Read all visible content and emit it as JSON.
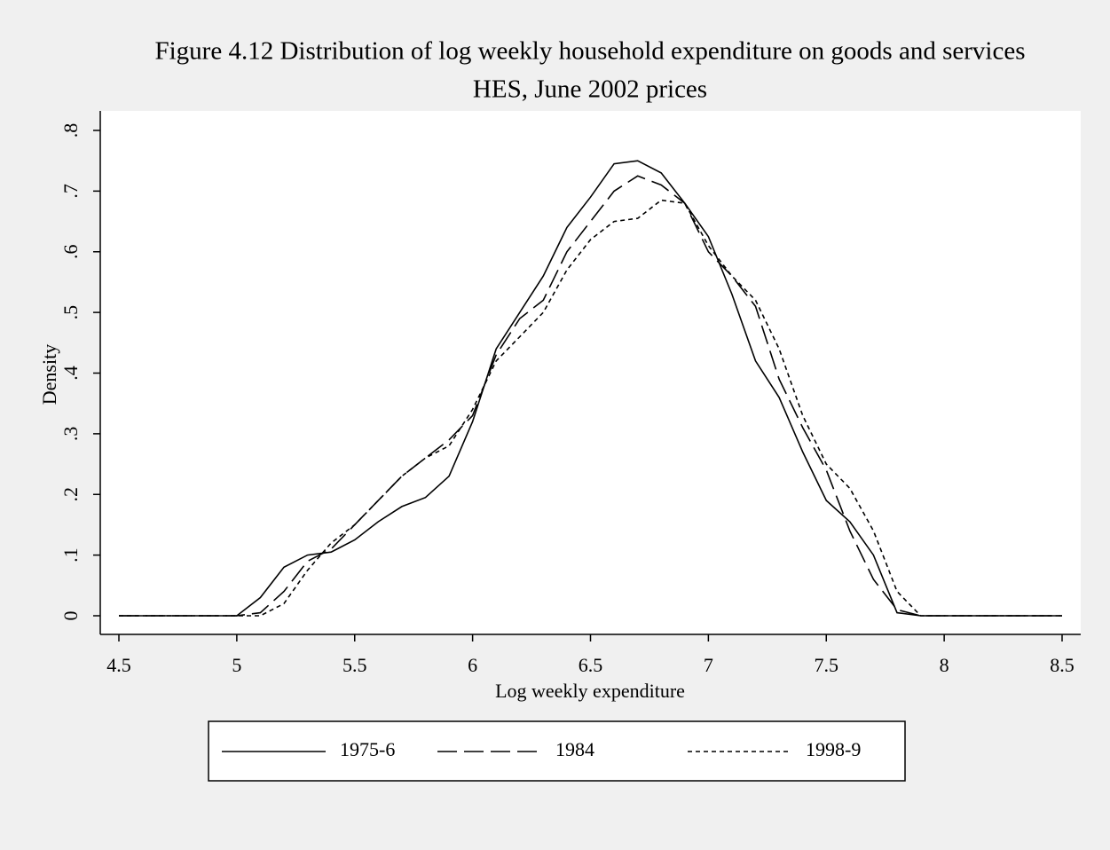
{
  "chart_data": {
    "type": "line",
    "title": "Figure 4.12 Distribution of log weekly household expenditure on goods and services",
    "subtitle": "HES, June 2002 prices",
    "x_label": "Log weekly expenditure",
    "y_label": "Density",
    "x": [
      4.5,
      4.6,
      4.7,
      4.8,
      4.9,
      5.0,
      5.1,
      5.2,
      5.3,
      5.4,
      5.5,
      5.6,
      5.7,
      5.8,
      5.9,
      6.0,
      6.1,
      6.2,
      6.3,
      6.4,
      6.5,
      6.6,
      6.7,
      6.8,
      6.9,
      7.0,
      7.1,
      7.2,
      7.3,
      7.4,
      7.5,
      7.6,
      7.7,
      7.8,
      7.9,
      8.0,
      8.1,
      8.2,
      8.3,
      8.4,
      8.5
    ],
    "series": [
      {
        "name": "1975-6",
        "color": "#000000",
        "dash": "solid",
        "values": [
          0,
          0,
          0,
          0,
          0,
          0,
          0.03,
          0.08,
          0.1,
          0.105,
          0.125,
          0.155,
          0.18,
          0.195,
          0.23,
          0.32,
          0.44,
          0.5,
          0.56,
          0.64,
          0.69,
          0.745,
          0.75,
          0.73,
          0.68,
          0.625,
          0.53,
          0.42,
          0.36,
          0.27,
          0.19,
          0.155,
          0.1,
          0.005,
          0,
          0,
          0,
          0,
          0,
          0,
          0
        ]
      },
      {
        "name": "1984",
        "color": "#000000",
        "dash": "dashed",
        "values": [
          0,
          0,
          0,
          0,
          0,
          0,
          0.005,
          0.04,
          0.09,
          0.11,
          0.15,
          0.19,
          0.23,
          0.26,
          0.29,
          0.33,
          0.43,
          0.49,
          0.52,
          0.6,
          0.65,
          0.7,
          0.725,
          0.71,
          0.68,
          0.6,
          0.56,
          0.51,
          0.39,
          0.31,
          0.24,
          0.14,
          0.06,
          0.01,
          0,
          0,
          0,
          0,
          0,
          0,
          0
        ]
      },
      {
        "name": "1998-9",
        "color": "#000000",
        "dash": "dotted",
        "values": [
          0,
          0,
          0,
          0,
          0,
          0,
          0,
          0.02,
          0.075,
          0.12,
          0.15,
          0.19,
          0.23,
          0.26,
          0.28,
          0.34,
          0.42,
          0.46,
          0.5,
          0.57,
          0.62,
          0.65,
          0.655,
          0.685,
          0.68,
          0.61,
          0.56,
          0.52,
          0.44,
          0.33,
          0.25,
          0.21,
          0.14,
          0.04,
          0,
          0,
          0,
          0,
          0,
          0,
          0
        ]
      }
    ],
    "xlim": [
      4.5,
      8.5
    ],
    "xticks": [
      4.5,
      5,
      5.5,
      6,
      6.5,
      7,
      7.5,
      8,
      8.5
    ],
    "ylim": [
      0,
      0.8
    ],
    "yticks": [
      0,
      {
        "value": 0.1,
        "label": ".1"
      },
      {
        "value": 0.2,
        "label": ".2"
      },
      {
        "value": 0.3,
        "label": ".3"
      },
      {
        "value": 0.4,
        "label": ".4"
      },
      {
        "value": 0.5,
        "label": ".5"
      },
      {
        "value": 0.6,
        "label": ".6"
      },
      {
        "value": 0.7,
        "label": ".7"
      },
      {
        "value": 0.8,
        "label": ".8"
      }
    ],
    "grid": false,
    "legend": "bottom"
  }
}
